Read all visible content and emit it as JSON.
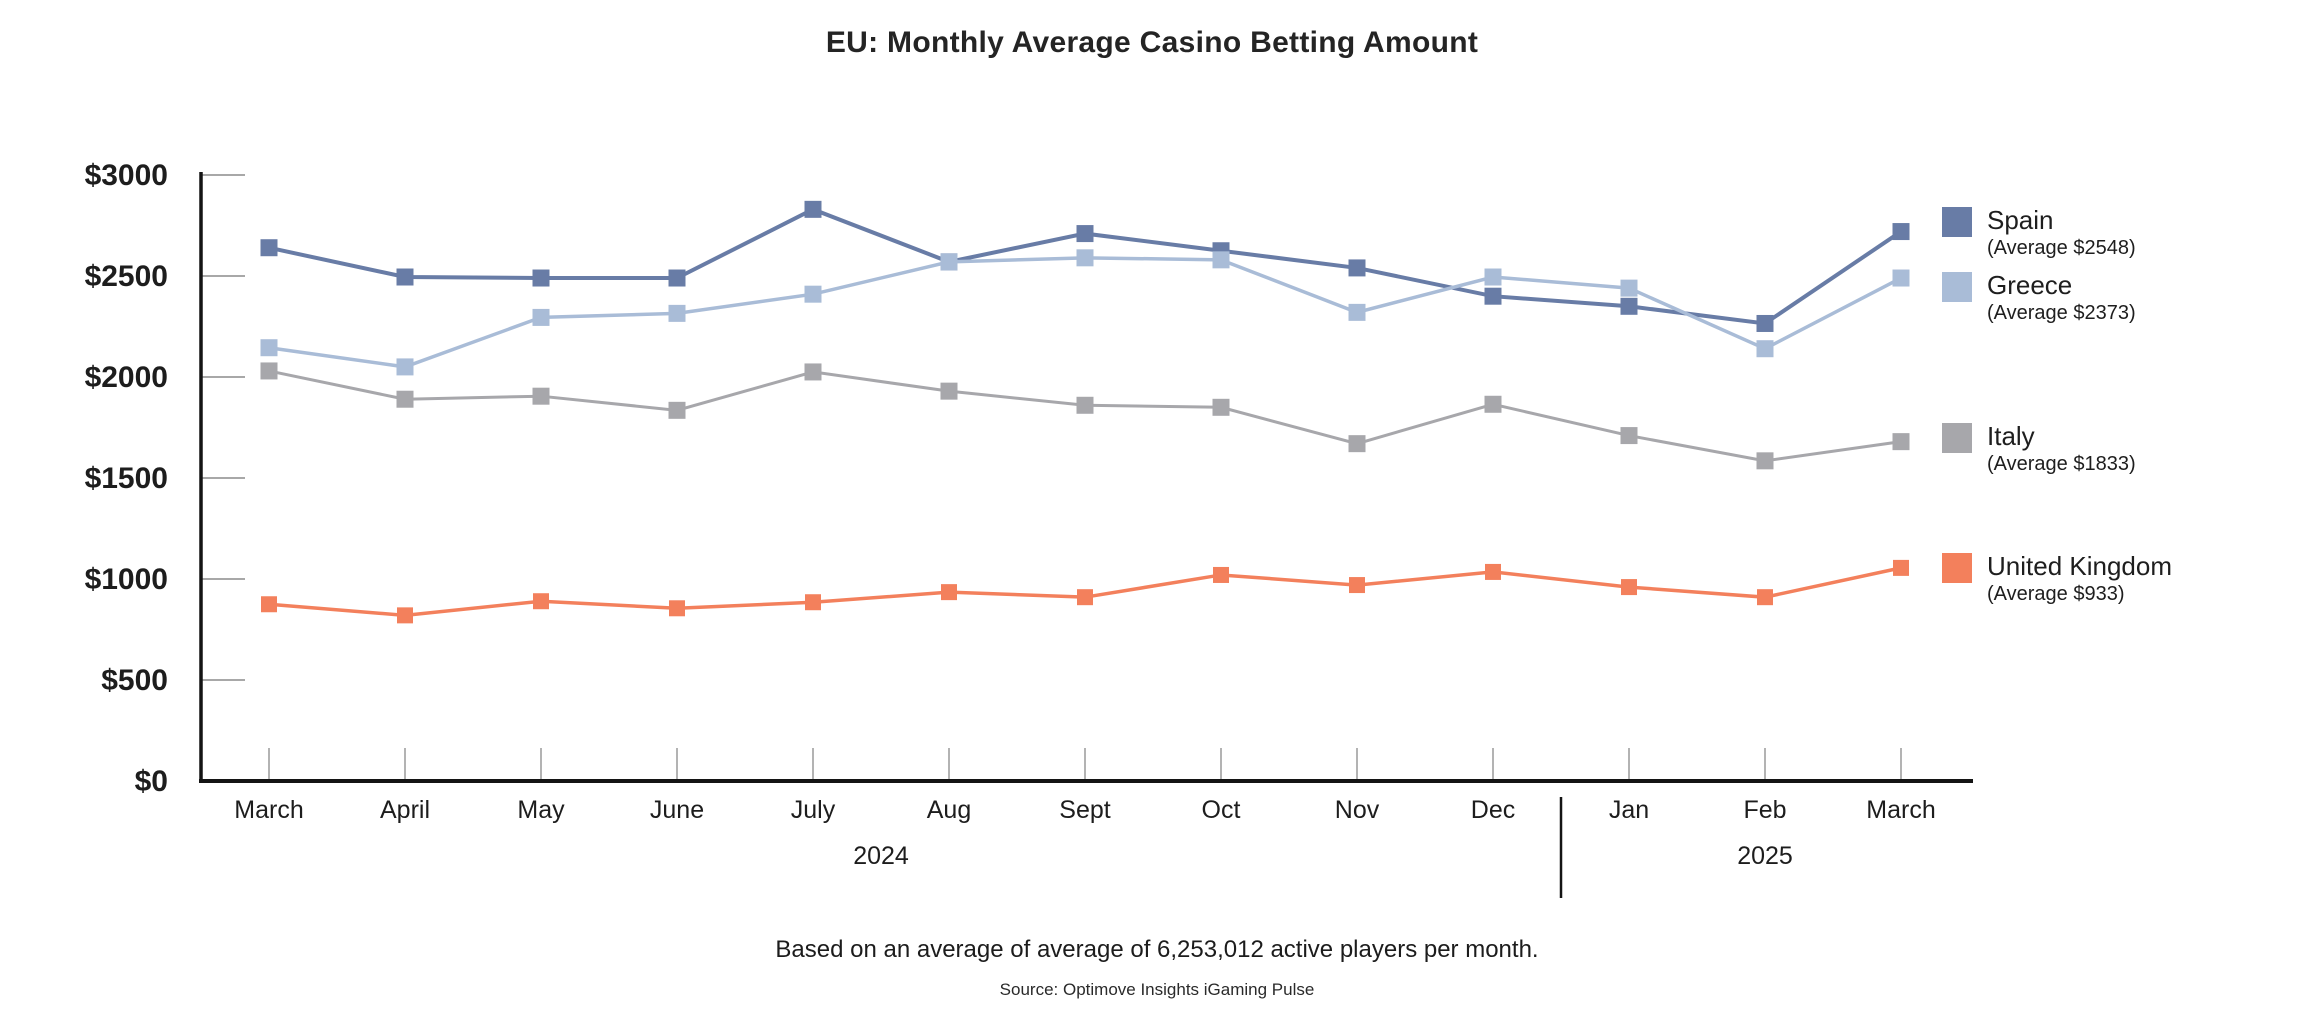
{
  "title": "EU: Monthly Average Casino Betting Amount",
  "footnote": "Based on an average of average of 6,253,012 active players per month.",
  "source": "Source: Optimove Insights iGaming Pulse",
  "chart_data": {
    "type": "line",
    "title": "EU: Monthly Average Casino Betting Amount",
    "categories": [
      "March",
      "April",
      "May",
      "June",
      "July",
      "Aug",
      "Sept",
      "Oct",
      "Nov",
      "Dec",
      "Jan",
      "Feb",
      "March"
    ],
    "year_groups": [
      {
        "label": "2024",
        "start_index": 0,
        "end_index": 9
      },
      {
        "label": "2025",
        "start_index": 10,
        "end_index": 12
      }
    ],
    "y_ticks": [
      {
        "value": 0,
        "label": "$0"
      },
      {
        "value": 500,
        "label": "$500"
      },
      {
        "value": 1000,
        "label": "$1000"
      },
      {
        "value": 1500,
        "label": "$1500"
      },
      {
        "value": 2000,
        "label": "$2000"
      },
      {
        "value": 2500,
        "label": "$2500"
      },
      {
        "value": 3000,
        "label": "$3000"
      }
    ],
    "ylim": [
      0,
      3000
    ],
    "grid": "ticks-only",
    "legend_position": "right",
    "series": [
      {
        "name": "Spain",
        "avg_label": "(Average $2548)",
        "average": 2548,
        "color": "#687CA6",
        "values": [
          2640,
          2495,
          2490,
          2490,
          2830,
          2570,
          2710,
          2625,
          2540,
          2400,
          2350,
          2265,
          2720
        ]
      },
      {
        "name": "Greece",
        "avg_label": "(Average $2373)",
        "average": 2373,
        "color": "#A9BCD7",
        "values": [
          2145,
          2050,
          2295,
          2315,
          2410,
          2570,
          2590,
          2580,
          2320,
          2495,
          2440,
          2140,
          2490
        ]
      },
      {
        "name": "Italy",
        "avg_label": "(Average $1833)",
        "average": 1833,
        "color": "#A7A7AB",
        "values": [
          2030,
          1890,
          1905,
          1835,
          2025,
          1930,
          1860,
          1850,
          1670,
          1865,
          1710,
          1585,
          1680
        ]
      },
      {
        "name": "United Kingdom",
        "avg_label": "(Average $933)",
        "average": 933,
        "color": "#F3805C",
        "values": [
          875,
          820,
          890,
          855,
          885,
          935,
          910,
          1020,
          970,
          1035,
          960,
          910,
          1055
        ]
      }
    ]
  }
}
